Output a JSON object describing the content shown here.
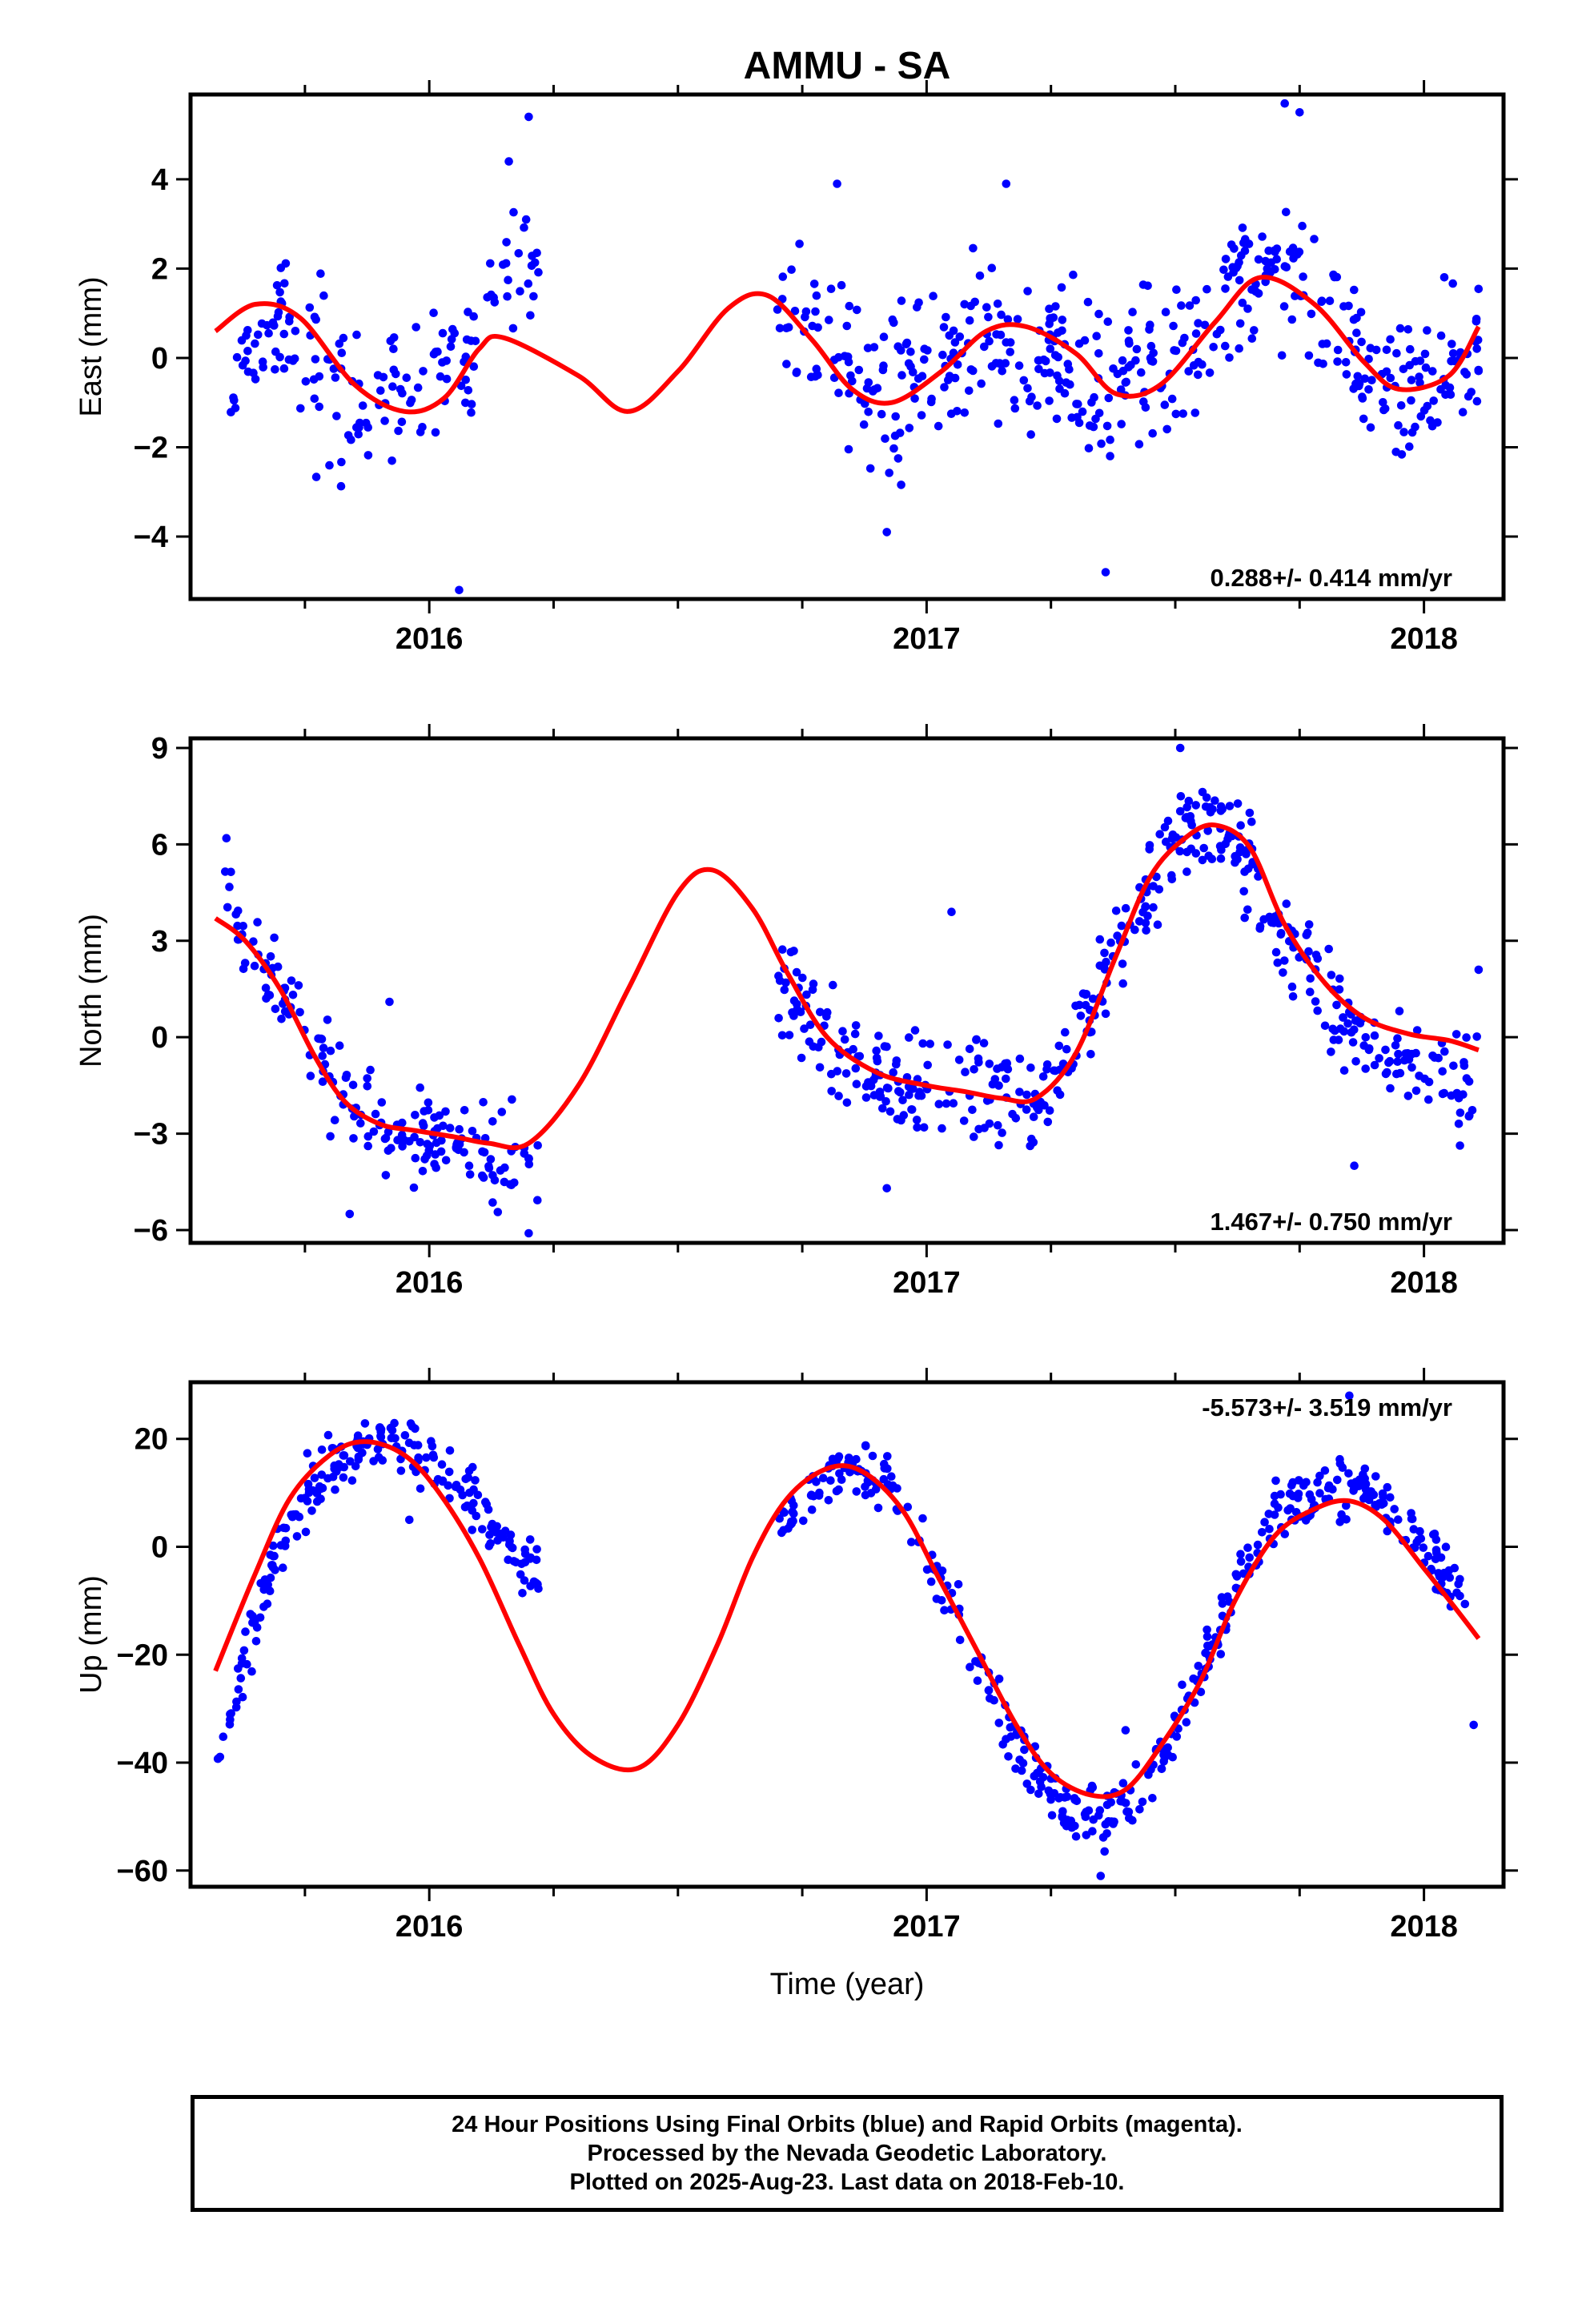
{
  "title": "AMMU - SA",
  "xlabel": "Time (year)",
  "colors": {
    "points": "#0000ff",
    "model": "#ff0000",
    "axes": "#000000"
  },
  "footer": {
    "line1": "24 Hour Positions Using Final Orbits (blue) and Rapid Orbits (magenta).",
    "line2": "Processed by the Nevada Geodetic Laboratory.",
    "line3": "Plotted on 2025-Aug-23. Last data on 2018-Feb-10."
  },
  "chart_data": [
    {
      "type": "scatter",
      "panel": "east",
      "ylabel": "East (mm)",
      "xlim": [
        2015.52,
        2018.16
      ],
      "ylim": [
        -5.4,
        5.9
      ],
      "xticks": [
        2016,
        2017,
        2018
      ],
      "xtick_labels": [
        "2016",
        "2017",
        "2018"
      ],
      "yticks": [
        -4,
        -2,
        0,
        2,
        4
      ],
      "ytick_labels": [
        "−4",
        "−2",
        "0",
        "2",
        "4"
      ],
      "rate_label": "0.288+/- 0.414 mm/yr",
      "data_gap": [
        2016.22,
        2016.7
      ],
      "model": {
        "name": "model",
        "x": [
          2015.57,
          2015.65,
          2015.74,
          2015.85,
          2015.95,
          2016.03,
          2016.1,
          2016.15,
          2016.3,
          2016.4,
          2016.5,
          2016.6,
          2016.68,
          2016.77,
          2016.85,
          2016.93,
          2017.03,
          2017.12,
          2017.2,
          2017.3,
          2017.38,
          2017.47,
          2017.58,
          2017.67,
          2017.78,
          2017.88,
          2017.95,
          2018.05,
          2018.11
        ],
        "y": [
          0.6,
          1.2,
          0.9,
          -0.6,
          -1.2,
          -0.9,
          0.2,
          0.45,
          -0.4,
          -1.2,
          -0.3,
          1.1,
          1.4,
          0.4,
          -0.7,
          -1.0,
          -0.3,
          0.6,
          0.7,
          0.1,
          -0.8,
          -0.6,
          0.8,
          1.8,
          1.2,
          -0.1,
          -0.7,
          -0.4,
          0.7
        ]
      },
      "points": {
        "name": "daily positions",
        "centers": [
          [
            2015.6,
            0.4
          ],
          [
            2015.7,
            0.6
          ],
          [
            2015.78,
            -0.5
          ],
          [
            2015.85,
            -1.1
          ],
          [
            2015.92,
            -0.9
          ],
          [
            2016.0,
            -0.6
          ],
          [
            2016.05,
            -0.4
          ],
          [
            2016.1,
            0.6
          ],
          [
            2016.15,
            1.6
          ],
          [
            2016.2,
            2.3
          ],
          [
            2016.72,
            1.2
          ],
          [
            2016.8,
            0.2
          ],
          [
            2016.9,
            -0.7
          ],
          [
            2016.97,
            -0.7
          ],
          [
            2017.05,
            -0.1
          ],
          [
            2017.12,
            0.4
          ],
          [
            2017.2,
            0.0
          ],
          [
            2017.28,
            -0.4
          ],
          [
            2017.36,
            -0.7
          ],
          [
            2017.45,
            -0.3
          ],
          [
            2017.55,
            0.6
          ],
          [
            2017.62,
            1.6
          ],
          [
            2017.7,
            2.4
          ],
          [
            2017.78,
            1.4
          ],
          [
            2017.85,
            0.2
          ],
          [
            2017.92,
            -0.8
          ],
          [
            2017.98,
            -0.8
          ],
          [
            2018.05,
            -0.2
          ],
          [
            2018.11,
            0.6
          ]
        ],
        "spread": 1.05,
        "count": 620,
        "seed": 11,
        "outliers": [
          [
            2016.06,
            -5.2
          ],
          [
            2017.36,
            -4.8
          ],
          [
            2016.2,
            5.4
          ],
          [
            2016.16,
            4.4
          ],
          [
            2017.72,
            5.7
          ],
          [
            2017.75,
            5.5
          ],
          [
            2016.92,
            -3.9
          ],
          [
            2016.82,
            3.9
          ],
          [
            2017.16,
            3.9
          ]
        ]
      }
    },
    {
      "type": "scatter",
      "panel": "north",
      "ylabel": "North (mm)",
      "xlim": [
        2015.52,
        2018.16
      ],
      "ylim": [
        -6.4,
        9.3
      ],
      "xticks": [
        2016,
        2017,
        2018
      ],
      "xtick_labels": [
        "2016",
        "2017",
        "2018"
      ],
      "yticks": [
        -6,
        -3,
        0,
        3,
        6,
        9
      ],
      "ytick_labels": [
        "−6",
        "−3",
        "0",
        "3",
        "6",
        "9"
      ],
      "rate_label": "1.467+/- 0.750 mm/yr",
      "data_gap": [
        2016.22,
        2016.7
      ],
      "model": {
        "name": "model",
        "x": [
          2015.57,
          2015.63,
          2015.7,
          2015.77,
          2015.83,
          2015.9,
          2015.97,
          2016.05,
          2016.12,
          2016.2,
          2016.3,
          2016.4,
          2016.5,
          2016.57,
          2016.65,
          2016.72,
          2016.8,
          2016.9,
          2017.0,
          2017.08,
          2017.15,
          2017.22,
          2017.3,
          2017.38,
          2017.45,
          2017.52,
          2017.58,
          2017.65,
          2017.72,
          2017.8,
          2017.88,
          2017.97,
          2018.05,
          2018.11
        ],
        "y": [
          3.7,
          3.0,
          1.5,
          -0.6,
          -2.0,
          -2.7,
          -2.9,
          -3.1,
          -3.3,
          -3.3,
          -1.5,
          1.5,
          4.5,
          5.2,
          4.0,
          2.0,
          0.0,
          -1.1,
          -1.5,
          -1.7,
          -1.9,
          -1.9,
          -0.5,
          2.5,
          5.0,
          6.2,
          6.6,
          5.9,
          3.5,
          1.7,
          0.6,
          0.1,
          -0.1,
          -0.4
        ]
      },
      "points": {
        "name": "daily positions",
        "centers": [
          [
            2015.58,
            4.8
          ],
          [
            2015.63,
            3.4
          ],
          [
            2015.7,
            1.6
          ],
          [
            2015.77,
            -0.3
          ],
          [
            2015.83,
            -1.8
          ],
          [
            2015.9,
            -2.7
          ],
          [
            2015.97,
            -3.1
          ],
          [
            2016.05,
            -3.5
          ],
          [
            2016.12,
            -3.8
          ],
          [
            2016.2,
            -3.7
          ],
          [
            2016.72,
            1.5
          ],
          [
            2016.8,
            0.4
          ],
          [
            2016.9,
            -1.2
          ],
          [
            2017.0,
            -1.5
          ],
          [
            2017.08,
            -1.6
          ],
          [
            2017.15,
            -1.8
          ],
          [
            2017.22,
            -1.9
          ],
          [
            2017.3,
            -0.2
          ],
          [
            2017.38,
            2.6
          ],
          [
            2017.45,
            5.0
          ],
          [
            2017.52,
            6.4
          ],
          [
            2017.58,
            6.7
          ],
          [
            2017.65,
            5.6
          ],
          [
            2017.72,
            3.4
          ],
          [
            2017.8,
            1.3
          ],
          [
            2017.88,
            0.0
          ],
          [
            2017.97,
            -1.0
          ],
          [
            2018.05,
            -1.6
          ],
          [
            2018.11,
            -1.7
          ]
        ],
        "spread": 0.95,
        "count": 620,
        "seed": 23,
        "outliers": [
          [
            2016.2,
            -6.1
          ],
          [
            2016.92,
            -4.7
          ],
          [
            2017.86,
            -4.0
          ],
          [
            2015.84,
            -5.5
          ],
          [
            2018.11,
            2.1
          ],
          [
            2017.05,
            3.9
          ],
          [
            2015.92,
            1.1
          ],
          [
            2017.51,
            9.0
          ]
        ]
      }
    },
    {
      "type": "scatter",
      "panel": "up",
      "ylabel": "Up (mm)",
      "xlim": [
        2015.52,
        2018.16
      ],
      "ylim": [
        -63,
        30.5
      ],
      "xticks": [
        2016,
        2017,
        2018
      ],
      "xtick_labels": [
        "2016",
        "2017",
        "2018"
      ],
      "yticks": [
        -60,
        -40,
        -20,
        0,
        20
      ],
      "ytick_labels": [
        "−60",
        "−40",
        "−20",
        "0",
        "20"
      ],
      "rate_label": "-5.573+/- 3.519 mm/yr",
      "data_gap": [
        2016.22,
        2016.7
      ],
      "model": {
        "name": "model",
        "x": [
          2015.57,
          2015.65,
          2015.72,
          2015.8,
          2015.87,
          2015.95,
          2016.02,
          2016.1,
          2016.18,
          2016.25,
          2016.33,
          2016.42,
          2016.5,
          2016.58,
          2016.65,
          2016.72,
          2016.8,
          2016.87,
          2016.95,
          2017.02,
          2017.1,
          2017.18,
          2017.25,
          2017.33,
          2017.4,
          2017.47,
          2017.55,
          2017.62,
          2017.7,
          2017.78,
          2017.85,
          2017.92,
          2018.0,
          2018.06,
          2018.11
        ],
        "y": [
          -23,
          -5,
          9,
          17,
          19.5,
          17,
          10,
          -2,
          -18,
          -31,
          -39,
          -41,
          -33,
          -18,
          -2,
          9,
          14.5,
          14,
          7,
          -5,
          -19,
          -33,
          -42,
          -46,
          -45,
          -37,
          -25,
          -10,
          2,
          7,
          8.5,
          5,
          -4,
          -11,
          -17
        ]
      },
      "points": {
        "name": "daily positions",
        "centers": [
          [
            2015.57,
            -38
          ],
          [
            2015.6,
            -30
          ],
          [
            2015.65,
            -15
          ],
          [
            2015.7,
            0
          ],
          [
            2015.75,
            10
          ],
          [
            2015.82,
            16
          ],
          [
            2015.88,
            19
          ],
          [
            2015.95,
            18
          ],
          [
            2016.02,
            15
          ],
          [
            2016.08,
            10
          ],
          [
            2016.13,
            4
          ],
          [
            2016.18,
            -4
          ],
          [
            2016.72,
            5
          ],
          [
            2016.78,
            12
          ],
          [
            2016.85,
            16
          ],
          [
            2016.92,
            12
          ],
          [
            2016.98,
            2
          ],
          [
            2017.05,
            -10
          ],
          [
            2017.12,
            -25
          ],
          [
            2017.2,
            -40
          ],
          [
            2017.28,
            -48
          ],
          [
            2017.36,
            -51
          ],
          [
            2017.43,
            -45
          ],
          [
            2017.5,
            -35
          ],
          [
            2017.57,
            -20
          ],
          [
            2017.63,
            -5
          ],
          [
            2017.7,
            6
          ],
          [
            2017.78,
            10
          ],
          [
            2017.86,
            11
          ],
          [
            2017.93,
            8
          ],
          [
            2017.98,
            3
          ],
          [
            2018.04,
            -5
          ],
          [
            2018.1,
            -12
          ]
        ],
        "spread": 3.4,
        "count": 640,
        "seed": 37,
        "outliers": [
          [
            2017.85,
            28
          ],
          [
            2018.1,
            -33
          ],
          [
            2017.4,
            -34
          ],
          [
            2015.96,
            5
          ],
          [
            2017.35,
            -61
          ]
        ]
      }
    }
  ]
}
